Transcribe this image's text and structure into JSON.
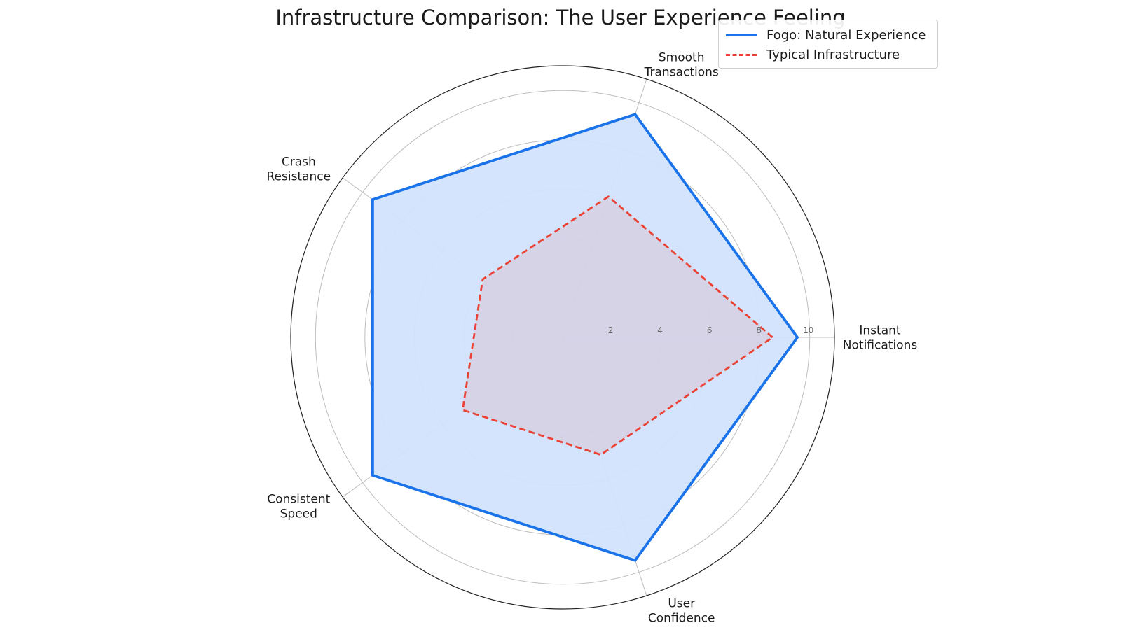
{
  "chart_data": {
    "type": "radar",
    "title": "Infrastructure Comparison: The User Experience Feeling",
    "axes": [
      {
        "name": "Instant Notifications",
        "lines": [
          "Instant",
          "Notifications"
        ]
      },
      {
        "name": "Smooth Transactions",
        "lines": [
          "Smooth",
          "Transactions"
        ]
      },
      {
        "name": "Crash Resistance",
        "lines": [
          "Crash",
          "Resistance"
        ]
      },
      {
        "name": "Consistent Speed",
        "lines": [
          "Consistent",
          "Speed"
        ]
      },
      {
        "name": "User Confidence",
        "lines": [
          "User",
          "Confidence"
        ]
      }
    ],
    "rlim": [
      0,
      11
    ],
    "rticks": [
      "2",
      "4",
      "6",
      "8",
      "10"
    ],
    "grid": true,
    "legend_position": "top-right",
    "series": [
      {
        "name": "Fogo: Natural Experience",
        "values": [
          9.5,
          9.5,
          9.5,
          9.5,
          9.5
        ],
        "color": "#1a73e8",
        "fill": "#d2e3fc",
        "style": "solid"
      },
      {
        "name": "Typical Infrastructure",
        "values": [
          8.5,
          6.0,
          4.0,
          5.0,
          5.0
        ],
        "color": "#ea4335",
        "style": "dashed"
      }
    ]
  }
}
